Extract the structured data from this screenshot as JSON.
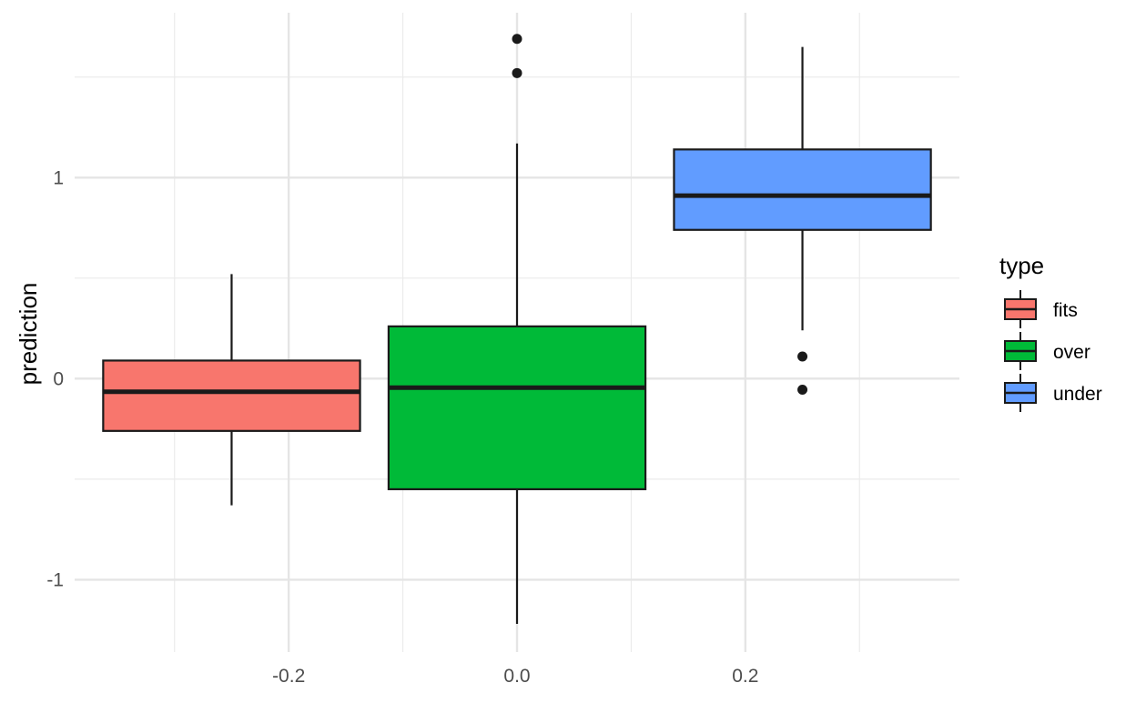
{
  "chart_data": {
    "type": "boxplot",
    "title": "",
    "xlabel": "",
    "ylabel": "prediction",
    "xlim": [
      -0.3875,
      0.3875
    ],
    "ylim": [
      -1.36,
      1.82
    ],
    "x_ticks": [
      -0.2,
      0.0,
      0.2
    ],
    "x_tick_labels": [
      "-0.2",
      "0.0",
      "0.2"
    ],
    "x_minor_ticks": [
      -0.3,
      -0.1,
      0.1,
      0.3
    ],
    "y_ticks": [
      -1,
      0,
      1
    ],
    "y_tick_labels": [
      "-1",
      "0",
      "1"
    ],
    "y_minor_ticks": [
      -0.5,
      0.5,
      1.5
    ],
    "grid": true,
    "legend": {
      "title": "type",
      "position": "right"
    },
    "series": [
      {
        "name": "fits",
        "color": "#F8766D",
        "x_center": -0.25,
        "box_width": 0.225,
        "whisker_low": -0.63,
        "q1": -0.26,
        "median": -0.065,
        "q3": 0.09,
        "whisker_high": 0.52,
        "outliers": []
      },
      {
        "name": "over",
        "color": "#00BA38",
        "x_center": 0.0,
        "box_width": 0.225,
        "whisker_low": -1.22,
        "q1": -0.55,
        "median": -0.045,
        "q3": 0.26,
        "whisker_high": 1.17,
        "outliers": [
          1.52,
          1.69
        ]
      },
      {
        "name": "under",
        "color": "#619CFF",
        "x_center": 0.25,
        "box_width": 0.225,
        "whisker_low": 0.24,
        "q1": 0.74,
        "median": 0.91,
        "q3": 1.14,
        "whisker_high": 1.65,
        "outliers": [
          0.11,
          -0.055
        ]
      }
    ]
  }
}
